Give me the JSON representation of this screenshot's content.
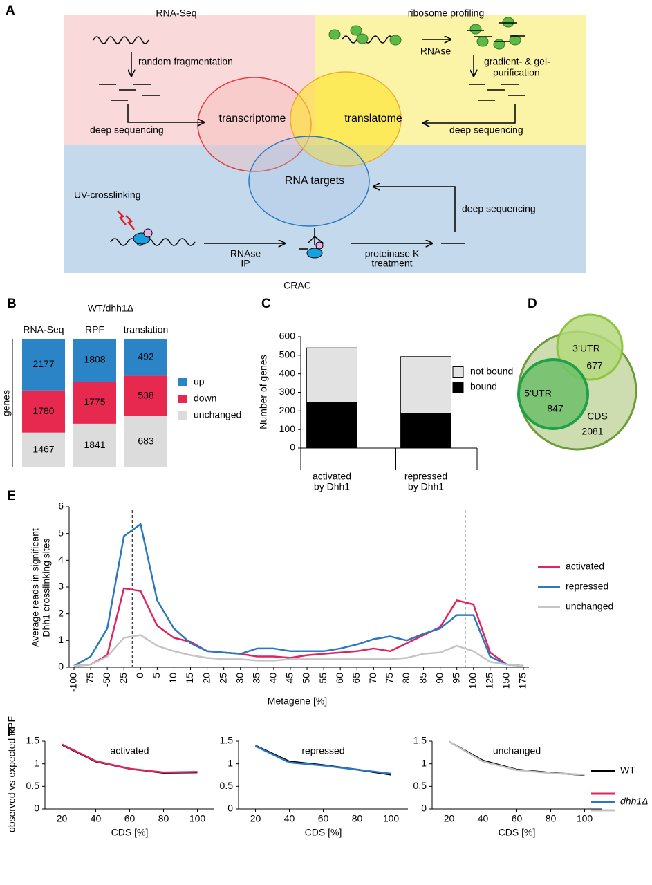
{
  "diagram": {
    "label": "A",
    "rnaseq": "RNA-Seq",
    "fragmentation": "random fragmentation",
    "deep_seq_left": "deep sequencing",
    "ribosome_profiling": "ribosome profiling",
    "rnase": "RNAse",
    "purification": [
      "gradient- &  gel-",
      "purification"
    ],
    "deep_seq_right": "deep sequencing",
    "transcriptome": "transcriptome",
    "translatome": "translatome",
    "rna_targets": "RNA targets",
    "uv": "UV-crosslinking",
    "rnase_ip": [
      "RNAse",
      "IP"
    ],
    "proteinase": [
      "proteinase K",
      "treatment"
    ],
    "deep_seq_bottom": "deep sequencing",
    "crac": "CRAC"
  },
  "chart_data": [
    {
      "type": "bar",
      "panel": "B",
      "title": "WT/dhh1Δ",
      "ylabel": "genes",
      "normalized": true,
      "data_labels": true,
      "categories": [
        "RNA-Seq",
        "RPF",
        "translation"
      ],
      "series": [
        {
          "name": "up",
          "color": "#2b84c6",
          "values": [
            2177,
            1808,
            492
          ]
        },
        {
          "name": "down",
          "color": "#e8294f",
          "values": [
            1780,
            1775,
            538
          ]
        },
        {
          "name": "unchanged",
          "color": "#dcdcdc",
          "values": [
            1467,
            1841,
            683
          ]
        }
      ]
    },
    {
      "type": "bar",
      "panel": "C",
      "ylabel": "Number of genes",
      "categories": [
        [
          "activated",
          "by Dhh1"
        ],
        [
          "repressed",
          "by Dhh1"
        ]
      ],
      "series": [
        {
          "name": "not bound",
          "color": "#e2e2e2",
          "values": [
            295,
            308
          ]
        },
        {
          "name": "bound",
          "color": "#000000",
          "values": [
            245,
            185
          ]
        }
      ],
      "ylim": [
        0,
        600
      ],
      "yticks": [
        0,
        100,
        200,
        300,
        400,
        500,
        600
      ]
    },
    {
      "type": "venn",
      "panel": "D",
      "sets": [
        {
          "name": "CDS",
          "value": 2081,
          "color": "#c6d7a2",
          "stroke": "#6d9b3b"
        },
        {
          "name": "3‘UTR",
          "value": 677,
          "color": "#b5d97c",
          "stroke": "#8cc63f"
        },
        {
          "name": "5‘UTR",
          "value": 847,
          "color": "#6dbf6a",
          "stroke": "#1fa14a"
        }
      ]
    },
    {
      "type": "line",
      "panel": "E",
      "ylabel": [
        "Average reads in significant",
        "Dhh1 crosslinking sites"
      ],
      "xlabel": "Metagene  [%]",
      "categories": [
        "-100",
        "-75",
        "-50",
        "-25",
        "0",
        "5",
        "10",
        "15",
        "20",
        "25",
        "30",
        "35",
        "40",
        "45",
        "50",
        "55",
        "60",
        "65",
        "70",
        "75",
        "80",
        "85",
        "90",
        "95",
        "100",
        "125",
        "150",
        "175"
      ],
      "series": [
        {
          "name": "activated",
          "color": "#e0245e",
          "values": [
            0.05,
            0.1,
            0.45,
            2.95,
            2.85,
            1.55,
            1.1,
            0.95,
            0.6,
            0.55,
            0.5,
            0.4,
            0.4,
            0.35,
            0.45,
            0.5,
            0.55,
            0.6,
            0.7,
            0.6,
            0.9,
            1.2,
            1.5,
            2.5,
            2.35,
            0.55,
            0.1,
            0.05
          ]
        },
        {
          "name": "repressed",
          "color": "#2a78c0",
          "values": [
            0.05,
            0.4,
            1.45,
            4.9,
            5.35,
            2.5,
            1.45,
            0.9,
            0.6,
            0.55,
            0.5,
            0.7,
            0.7,
            0.6,
            0.6,
            0.6,
            0.7,
            0.85,
            1.05,
            1.15,
            1.0,
            1.25,
            1.45,
            1.95,
            1.95,
            0.4,
            0.1,
            0.05
          ]
        },
        {
          "name": "unchanged",
          "color": "#c4c4c4",
          "values": [
            0.05,
            0.1,
            0.4,
            1.1,
            1.2,
            0.8,
            0.6,
            0.45,
            0.35,
            0.3,
            0.3,
            0.25,
            0.25,
            0.3,
            0.3,
            0.3,
            0.3,
            0.3,
            0.3,
            0.3,
            0.35,
            0.5,
            0.55,
            0.8,
            0.6,
            0.2,
            0.1,
            0.05
          ]
        }
      ],
      "ylim": [
        0,
        6
      ],
      "yticks": [
        0,
        1,
        2,
        3,
        4,
        5,
        6
      ]
    },
    {
      "type": "line",
      "panel": "F",
      "title": "activated",
      "ylabel": "observed vs expected RPF",
      "xlabel": "CDS [%]",
      "x": [
        20,
        40,
        60,
        80,
        100
      ],
      "series": [
        {
          "name": "WT",
          "color": "#000000",
          "values": [
            1.42,
            1.05,
            0.89,
            0.8,
            0.81
          ]
        },
        {
          "name": "dhh1Δ",
          "color": "#e0245e",
          "values": [
            1.43,
            1.06,
            0.89,
            0.81,
            0.82
          ]
        }
      ],
      "xlim": [
        10,
        110
      ],
      "xticks": [
        20,
        40,
        60,
        80,
        100
      ],
      "ylim": [
        0,
        1.5
      ],
      "yticks": [
        0,
        0.5,
        1,
        1.5
      ]
    },
    {
      "type": "line",
      "title": "repressed",
      "xlabel": "CDS [%]",
      "x": [
        20,
        40,
        60,
        80,
        100
      ],
      "series": [
        {
          "name": "WT",
          "color": "#000000",
          "values": [
            1.4,
            1.05,
            0.97,
            0.87,
            0.76
          ]
        },
        {
          "name": "dhh1Δ",
          "color": "#2a78c0",
          "values": [
            1.39,
            1.03,
            0.96,
            0.87,
            0.78
          ]
        }
      ],
      "xlim": [
        10,
        110
      ],
      "xticks": [
        20,
        40,
        60,
        80,
        100
      ],
      "ylim": [
        0,
        1.5
      ],
      "yticks": [
        0,
        0.5,
        1,
        1.5
      ]
    },
    {
      "type": "line",
      "title": "unchanged",
      "xlabel": "CDS [%]",
      "x": [
        20,
        40,
        60,
        80,
        100
      ],
      "series": [
        {
          "name": "WT",
          "color": "#000000",
          "values": [
            1.49,
            1.07,
            0.87,
            0.8,
            0.75
          ]
        },
        {
          "name": "dhh1Δ",
          "color": "#c4c4c4",
          "values": [
            1.49,
            1.05,
            0.86,
            0.79,
            0.76
          ]
        }
      ],
      "xlim": [
        10,
        110
      ],
      "xticks": [
        20,
        40,
        60,
        80,
        100
      ],
      "ylim": [
        0,
        1.5
      ],
      "yticks": [
        0,
        0.5,
        1,
        1.5
      ]
    }
  ]
}
